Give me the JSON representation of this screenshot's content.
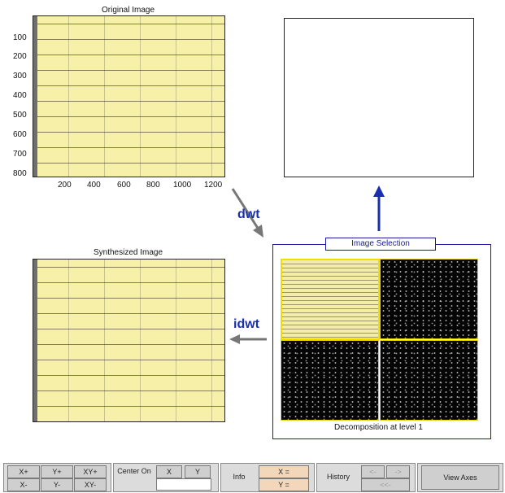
{
  "original": {
    "title": "Original Image",
    "y_ticks": [
      "100",
      "200",
      "300",
      "400",
      "500",
      "600",
      "700",
      "800"
    ],
    "x_ticks": [
      "200",
      "400",
      "600",
      "800",
      "1000",
      "1200"
    ]
  },
  "synth": {
    "title": "Synthesized Image"
  },
  "arrows": {
    "dwt": "dwt",
    "idwt": "idwt"
  },
  "selection": {
    "title": "Image Selection",
    "caption": "Decomposition at level 1"
  },
  "toolbar": {
    "zoom": [
      "X+",
      "Y+",
      "XY+",
      "X-",
      "Y-",
      "XY-"
    ],
    "center_label": "Center On",
    "center_x": "X",
    "center_y": "Y",
    "center_value": "",
    "info_label": "Info",
    "info_x": "X =",
    "info_y": "Y =",
    "history_label": "History",
    "hist_prev": "<-",
    "hist_next": "->",
    "hist_first": "<<-",
    "view_axes": "View Axes"
  },
  "colors": {
    "image_bg": "#f6f0a8",
    "accent": "#1a2fae",
    "selection_border": "#f0de00",
    "field": "#f3d7bb"
  }
}
